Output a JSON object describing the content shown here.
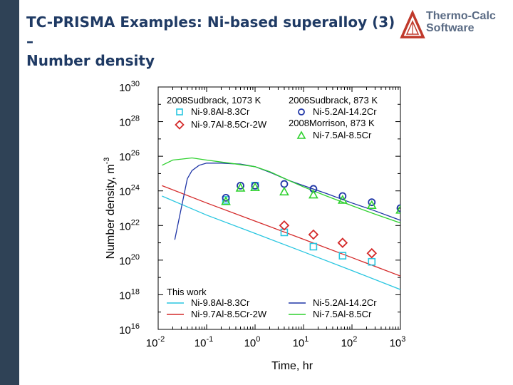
{
  "slide": {
    "title_line1": "TC-PRISMA Examples: Ni-based superalloy (3) –",
    "title_line2": "Number density"
  },
  "logo": {
    "line1": "Thermo-Calc",
    "line2": "Software",
    "color": "#c0392b"
  },
  "chart_data": {
    "type": "line",
    "xlabel": "Time, hr",
    "ylabel": "Number density, m-3",
    "xscale": "log",
    "yscale": "log",
    "xlim": [
      0.01,
      1000
    ],
    "ylim": [
      1e+16,
      1e+30
    ],
    "xticks": [
      {
        "base": "10",
        "exp": "-2"
      },
      {
        "base": "10",
        "exp": "-1"
      },
      {
        "base": "10",
        "exp": "0"
      },
      {
        "base": "10",
        "exp": "1"
      },
      {
        "base": "10",
        "exp": "2"
      },
      {
        "base": "10",
        "exp": "3"
      }
    ],
    "yticks": [
      {
        "base": "10",
        "exp": "16"
      },
      {
        "base": "10",
        "exp": "18"
      },
      {
        "base": "10",
        "exp": "20"
      },
      {
        "base": "10",
        "exp": "22"
      },
      {
        "base": "10",
        "exp": "24"
      },
      {
        "base": "10",
        "exp": "26"
      },
      {
        "base": "10",
        "exp": "28"
      },
      {
        "base": "10",
        "exp": "30"
      }
    ],
    "legend_top": {
      "col1_header": "2008Sudbrack, 1073 K",
      "col2_header": "2006Sudbrack, 873 K",
      "col2_header2": "2008Morrison, 873 K",
      "entries": [
        {
          "label": "Ni-9.8Al-8.3Cr",
          "marker": "square",
          "color": "#29c6e0"
        },
        {
          "label": "Ni-9.7Al-8.5Cr-2W",
          "marker": "diamond",
          "color": "#d42a2a"
        },
        {
          "label": "Ni-5.2Al-14.2Cr",
          "marker": "circle",
          "color": "#1f35a6"
        },
        {
          "label": "Ni-7.5Al-8.5Cr",
          "marker": "triangle",
          "color": "#2fd12f"
        }
      ]
    },
    "legend_bottom": {
      "header": "This work",
      "entries": [
        {
          "label": "Ni-9.8Al-8.3Cr",
          "color": "#29c6e0"
        },
        {
          "label": "Ni-9.7Al-8.5Cr-2W",
          "color": "#d42a2a"
        },
        {
          "label": "Ni-5.2Al-14.2Cr",
          "color": "#1f35a6"
        },
        {
          "label": "Ni-7.5Al-8.5Cr",
          "color": "#2fd12f"
        }
      ]
    },
    "series": [
      {
        "name": "Ni-9.8Al-8.3Cr",
        "kind": "line",
        "color": "#29c6e0",
        "points": [
          [
            0.012,
            5e+23
          ],
          [
            0.1,
            4e+22
          ],
          [
            1,
            3.5e+21
          ],
          [
            10,
            3e+20
          ],
          [
            100,
            2.5e+19
          ],
          [
            1000,
            2e+18
          ]
        ]
      },
      {
        "name": "Ni-9.7Al-8.5Cr-2W",
        "kind": "line",
        "color": "#d42a2a",
        "points": [
          [
            0.012,
            2e+24
          ],
          [
            0.1,
            2e+23
          ],
          [
            1,
            1.8e+22
          ],
          [
            10,
            1.6e+21
          ],
          [
            100,
            1.4e+20
          ],
          [
            1000,
            1.2e+19
          ]
        ]
      },
      {
        "name": "Ni-5.2Al-14.2Cr",
        "kind": "line",
        "color": "#1f35a6",
        "points": [
          [
            0.022,
            1.5e+21
          ],
          [
            0.03,
            1e+23
          ],
          [
            0.04,
            5e+24
          ],
          [
            0.05,
            1.5e+25
          ],
          [
            0.07,
            3e+25
          ],
          [
            0.1,
            4e+25
          ],
          [
            0.2,
            4e+25
          ],
          [
            0.5,
            3.5e+25
          ],
          [
            1,
            2.5e+25
          ],
          [
            2,
            1.2e+25
          ],
          [
            5,
            4e+24
          ],
          [
            10,
            2e+24
          ],
          [
            30,
            7e+23
          ],
          [
            100,
            2e+23
          ],
          [
            300,
            7e+22
          ],
          [
            1000,
            2e+22
          ]
        ]
      },
      {
        "name": "Ni-7.5Al-8.5Cr",
        "kind": "line",
        "color": "#2fd12f",
        "points": [
          [
            0.012,
            3e+25
          ],
          [
            0.02,
            6e+25
          ],
          [
            0.05,
            8e+25
          ],
          [
            0.1,
            6e+25
          ],
          [
            0.3,
            4e+25
          ],
          [
            1,
            2.5e+25
          ],
          [
            2,
            1.3e+25
          ],
          [
            5,
            4e+24
          ],
          [
            10,
            1.7e+24
          ],
          [
            30,
            5e+23
          ],
          [
            100,
            1.4e+23
          ],
          [
            300,
            4.5e+22
          ],
          [
            1000,
            1.4e+22
          ]
        ]
      },
      {
        "name": "Ni-9.8Al-8.3Cr",
        "kind": "marker",
        "marker": "square",
        "color": "#29c6e0",
        "points": [
          [
            0.25,
            3e+23
          ],
          [
            1,
            2e+24
          ],
          [
            4,
            4e+21
          ],
          [
            16,
            6e+20
          ],
          [
            64,
            1.8e+20
          ],
          [
            256,
            8e+19
          ]
        ]
      },
      {
        "name": "Ni-9.7Al-8.5Cr-2W",
        "kind": "marker",
        "marker": "diamond",
        "color": "#d42a2a",
        "points": [
          [
            4,
            1e+22
          ],
          [
            16,
            3e+21
          ],
          [
            64,
            1e+21
          ],
          [
            256,
            2.5e+20
          ]
        ]
      },
      {
        "name": "Ni-5.2Al-14.2Cr",
        "kind": "marker",
        "marker": "circle",
        "color": "#1f35a6",
        "points": [
          [
            0.25,
            4e+23
          ],
          [
            0.5,
            2e+24
          ],
          [
            1,
            2e+24
          ],
          [
            4,
            2.5e+24
          ],
          [
            16,
            1.3e+24
          ],
          [
            64,
            5e+23
          ],
          [
            256,
            2.2e+23
          ],
          [
            1000,
            1e+23
          ]
        ]
      },
      {
        "name": "Ni-7.5Al-8.5Cr",
        "kind": "marker",
        "marker": "triangle",
        "color": "#2fd12f",
        "points": [
          [
            0.25,
            2.5e+23
          ],
          [
            0.5,
            1.5e+24
          ],
          [
            1,
            1.6e+24
          ],
          [
            4,
            9e+23
          ],
          [
            16,
            6e+23
          ],
          [
            64,
            3e+23
          ],
          [
            256,
            1.5e+23
          ],
          [
            1000,
            8e+22
          ]
        ]
      }
    ]
  }
}
